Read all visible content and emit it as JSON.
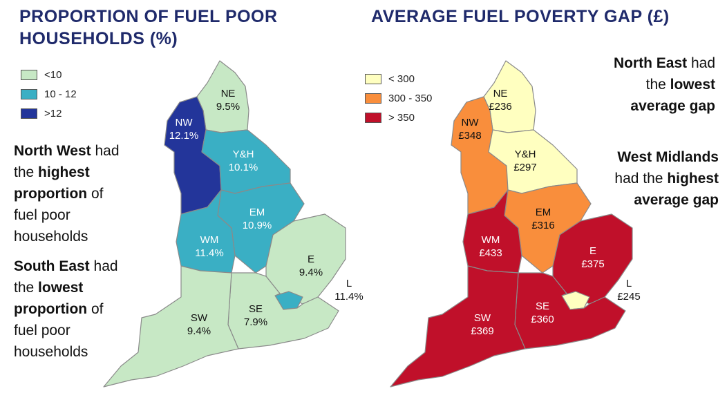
{
  "left_panel": {
    "title_line1": "PROPORTION OF FUEL POOR",
    "title_line2": "HOUSEHOLDS (%)",
    "legend": [
      {
        "label": "<10",
        "color": "#c7e8c5"
      },
      {
        "label": "10 - 12",
        "color": "#3aafc4"
      },
      {
        "label": ">12",
        "color": "#23359a"
      }
    ],
    "regions": {
      "NE": {
        "name": "NE",
        "value": "9.5%"
      },
      "NW": {
        "name": "NW",
        "value": "12.1%"
      },
      "YH": {
        "name": "Y&H",
        "value": "10.1%"
      },
      "EM": {
        "name": "EM",
        "value": "10.9%"
      },
      "WM": {
        "name": "WM",
        "value": "11.4%"
      },
      "E": {
        "name": "E",
        "value": "9.4%"
      },
      "L": {
        "name": "L",
        "value": "11.4%"
      },
      "SE": {
        "name": "SE",
        "value": "7.9%"
      },
      "SW": {
        "name": "SW",
        "value": "9.4%"
      }
    },
    "note1": {
      "bold1": "North West",
      "t1": " had",
      "t2": "the ",
      "bold2": "highest",
      "bold3": "proportion",
      "t3": " of",
      "t4": "fuel poor",
      "t5": "households"
    },
    "note2": {
      "bold1": "South East",
      "t1": " had",
      "t2": "the ",
      "bold2": "lowest",
      "bold3": "proportion",
      "t3": " of",
      "t4": "fuel poor",
      "t5": "households"
    }
  },
  "right_panel": {
    "title": "AVERAGE FUEL POVERTY GAP (£)",
    "legend": [
      {
        "label": "< 300",
        "color": "#ffffc0"
      },
      {
        "label": "300 - 350",
        "color": "#f98e3c"
      },
      {
        "label": "> 350",
        "color": "#c0102a"
      }
    ],
    "regions": {
      "NE": {
        "name": "NE",
        "value": "£236"
      },
      "NW": {
        "name": "NW",
        "value": "£348"
      },
      "YH": {
        "name": "Y&H",
        "value": "£297"
      },
      "EM": {
        "name": "EM",
        "value": "£316"
      },
      "WM": {
        "name": "WM",
        "value": "£433"
      },
      "E": {
        "name": "E",
        "value": "£375"
      },
      "L": {
        "name": "L",
        "value": "£245"
      },
      "SE": {
        "name": "SE",
        "value": "£360"
      },
      "SW": {
        "name": "SW",
        "value": "£369"
      }
    },
    "note1": {
      "bold1": "North East",
      "t1": " had",
      "t2": "the ",
      "bold2": "lowest",
      "bold3": "average gap"
    },
    "note2": {
      "bold1": "West Midlands",
      "t1": "had the ",
      "bold2": "highest",
      "bold3": "average gap"
    }
  }
}
